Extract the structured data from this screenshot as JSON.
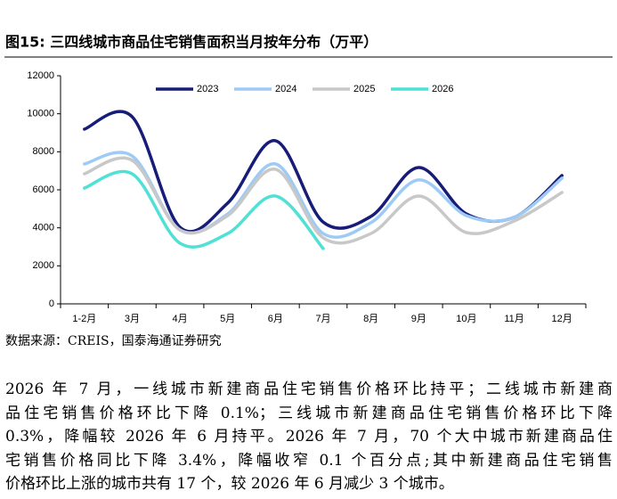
{
  "chart_data": {
    "type": "line",
    "title": "图15:  三四线城市商品住宅销售面积当月按年分布（万平）",
    "source": "数据来源：CREIS，国泰海通证券研究",
    "categories": [
      "1-2月",
      "3月",
      "4月",
      "5月",
      "6月",
      "7月",
      "8月",
      "9月",
      "10月",
      "11月",
      "12月"
    ],
    "series": [
      {
        "name": "2023",
        "color": "#161c78",
        "values": [
          9190,
          9840,
          4030,
          5300,
          8580,
          4300,
          4600,
          7170,
          4730,
          4550,
          6750
        ]
      },
      {
        "name": "2024",
        "color": "#9ecbf5",
        "values": [
          7360,
          7780,
          3890,
          4730,
          7360,
          3700,
          4270,
          6520,
          4640,
          4550,
          6610
        ]
      },
      {
        "name": "2025",
        "color": "#c8c8c8",
        "values": [
          6840,
          7550,
          3890,
          4640,
          7080,
          3470,
          3700,
          5670,
          3750,
          4360,
          5860
        ]
      },
      {
        "name": "2026",
        "color": "#4fe0d6",
        "values": [
          6090,
          6840,
          3190,
          3700,
          5670,
          2910,
          null,
          null,
          null,
          null,
          null
        ]
      }
    ],
    "ylim": [
      0,
      12000
    ],
    "yticks": [
      0,
      2000,
      4000,
      6000,
      8000,
      10000,
      12000
    ],
    "grid": false,
    "legend": "top"
  },
  "body_lines": [
    "2026 年 7 月，一线城市新建商品住宅销售价格环比持平；二线城市新建商",
    "品住宅销售价格环比下降 0.1%；三线城市新建商品住宅销售价格环比下降",
    "0.3%，降幅较 2026 年 6 月持平。2026 年 7 月，70 个大中城市新建商品住",
    "宅销售价格同比下降 3.4%，降幅收窄 0.1 个百分点;其中新建商品住宅销售",
    "价格环比上涨的城市共有 17 个，较 2026 年 6 月减少 3 个城市。"
  ]
}
